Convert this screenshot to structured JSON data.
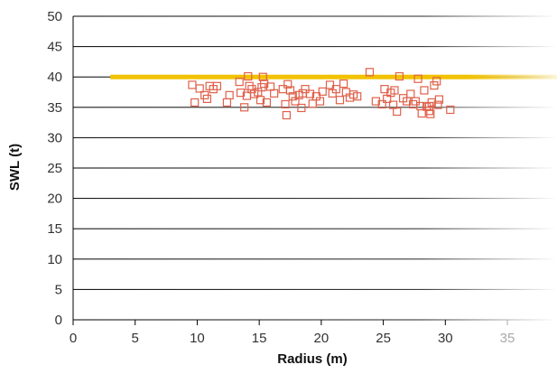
{
  "chart_data": {
    "type": "scatter",
    "title": "",
    "xlabel": "Radius (m)",
    "ylabel": "SWL (t)",
    "xlim": [
      0,
      39
    ],
    "ylim": [
      0,
      50
    ],
    "x_ticks": [
      0,
      5,
      10,
      15,
      20,
      25,
      30,
      35
    ],
    "y_ticks": [
      0,
      5,
      10,
      15,
      20,
      25,
      30,
      35,
      40,
      45,
      50
    ],
    "grid": "horizontal",
    "legend": "none",
    "colors": {
      "points": "#e0604a",
      "reference_line": "#f2c200",
      "grid": "#000000",
      "faded_tick": "#aaaaaa"
    },
    "reference_line": {
      "y": 40,
      "x_start": 3,
      "x_end": 39
    },
    "series": [
      {
        "marker": "open-square",
        "points": [
          [
            9.6,
            38.7
          ],
          [
            9.8,
            35.8
          ],
          [
            10.2,
            38.1
          ],
          [
            10.6,
            37.0
          ],
          [
            10.8,
            36.4
          ],
          [
            11.0,
            38.5
          ],
          [
            11.3,
            38.0
          ],
          [
            11.6,
            38.5
          ],
          [
            12.4,
            35.8
          ],
          [
            12.6,
            37.0
          ],
          [
            13.4,
            39.2
          ],
          [
            13.5,
            37.4
          ],
          [
            13.8,
            35.0
          ],
          [
            14.0,
            36.9
          ],
          [
            14.1,
            40.1
          ],
          [
            14.2,
            38.5
          ],
          [
            14.4,
            38.0
          ],
          [
            14.6,
            37.2
          ],
          [
            14.9,
            37.5
          ],
          [
            15.1,
            36.2
          ],
          [
            15.2,
            38.3
          ],
          [
            15.3,
            40.0
          ],
          [
            15.4,
            38.9
          ],
          [
            15.6,
            35.8
          ],
          [
            15.9,
            38.4
          ],
          [
            16.2,
            37.3
          ],
          [
            16.9,
            38.0
          ],
          [
            17.1,
            35.5
          ],
          [
            17.2,
            33.7
          ],
          [
            17.3,
            38.8
          ],
          [
            17.5,
            37.8
          ],
          [
            17.7,
            36.8
          ],
          [
            17.9,
            36.0
          ],
          [
            18.2,
            37.0
          ],
          [
            18.4,
            34.9
          ],
          [
            18.5,
            37.3
          ],
          [
            18.7,
            38.0
          ],
          [
            19.1,
            37.2
          ],
          [
            19.3,
            35.6
          ],
          [
            19.6,
            36.8
          ],
          [
            19.9,
            36.0
          ],
          [
            20.1,
            37.6
          ],
          [
            20.7,
            38.7
          ],
          [
            20.9,
            37.3
          ],
          [
            21.2,
            38.0
          ],
          [
            21.5,
            36.2
          ],
          [
            21.8,
            38.9
          ],
          [
            22.0,
            37.5
          ],
          [
            22.3,
            36.6
          ],
          [
            22.6,
            37.1
          ],
          [
            22.9,
            36.8
          ],
          [
            23.9,
            40.8
          ],
          [
            24.4,
            36.0
          ],
          [
            24.9,
            35.5
          ],
          [
            25.1,
            38.0
          ],
          [
            25.3,
            36.4
          ],
          [
            25.6,
            37.4
          ],
          [
            25.8,
            35.4
          ],
          [
            25.9,
            37.8
          ],
          [
            26.1,
            34.3
          ],
          [
            26.3,
            40.1
          ],
          [
            26.6,
            36.5
          ],
          [
            26.9,
            36.0
          ],
          [
            27.2,
            37.2
          ],
          [
            27.4,
            35.5
          ],
          [
            27.6,
            36.0
          ],
          [
            27.8,
            39.7
          ],
          [
            28.0,
            35.2
          ],
          [
            28.1,
            34.0
          ],
          [
            28.3,
            37.8
          ],
          [
            28.5,
            35.1
          ],
          [
            28.7,
            34.4
          ],
          [
            28.8,
            33.9
          ],
          [
            28.9,
            35.8
          ],
          [
            29.1,
            38.6
          ],
          [
            29.3,
            39.3
          ],
          [
            29.4,
            35.4
          ],
          [
            29.5,
            36.3
          ],
          [
            30.4,
            34.6
          ],
          [
            28.7,
            35.2
          ]
        ]
      }
    ]
  }
}
